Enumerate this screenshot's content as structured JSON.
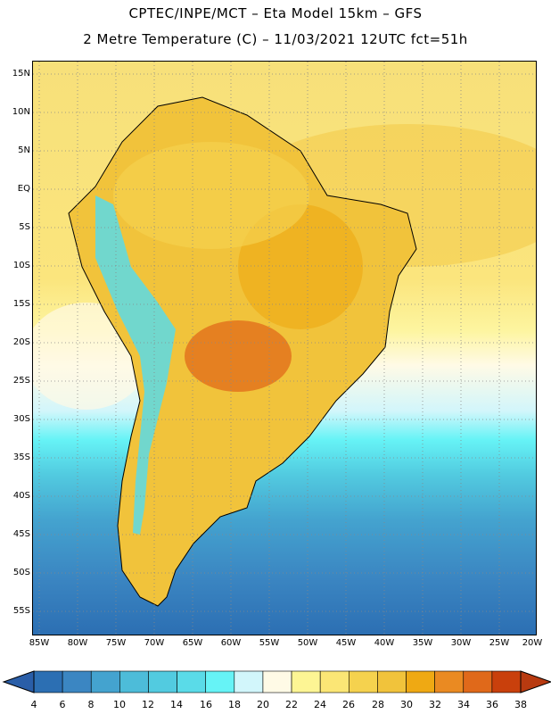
{
  "title": {
    "line1": "CPTEC/INPE/MCT –  Eta Model 15km – GFS",
    "line2": "2 Metre Temperature (C) – 11/03/2021 12UTC fct=51h"
  },
  "map": {
    "lat_labels": [
      "15N",
      "10N",
      "5N",
      "EQ",
      "5S",
      "10S",
      "15S",
      "20S",
      "25S",
      "30S",
      "35S",
      "40S",
      "45S",
      "50S",
      "55S"
    ],
    "lon_labels": [
      "85W",
      "80W",
      "75W",
      "70W",
      "65W",
      "60W",
      "55W",
      "50W",
      "45W",
      "40W",
      "35W",
      "30W",
      "25W",
      "20W"
    ]
  },
  "colorbar": {
    "labels": [
      "4",
      "6",
      "8",
      "10",
      "12",
      "14",
      "16",
      "18",
      "20",
      "22",
      "24",
      "26",
      "28",
      "30",
      "32",
      "34",
      "36",
      "38"
    ],
    "colors": [
      "#2c6fb3",
      "#3b86c2",
      "#44a3cf",
      "#4dbcd9",
      "#52cbe0",
      "#5adbe8",
      "#66f3f6",
      "#d2f6fb",
      "#fffae6",
      "#fdf594",
      "#fbe675",
      "#f5d24e",
      "#f1c33b",
      "#efa913",
      "#ea8a22",
      "#e0691a",
      "#c9400c"
    ],
    "low_color": "#2a5ea8",
    "high_color": "#b83a10"
  }
}
